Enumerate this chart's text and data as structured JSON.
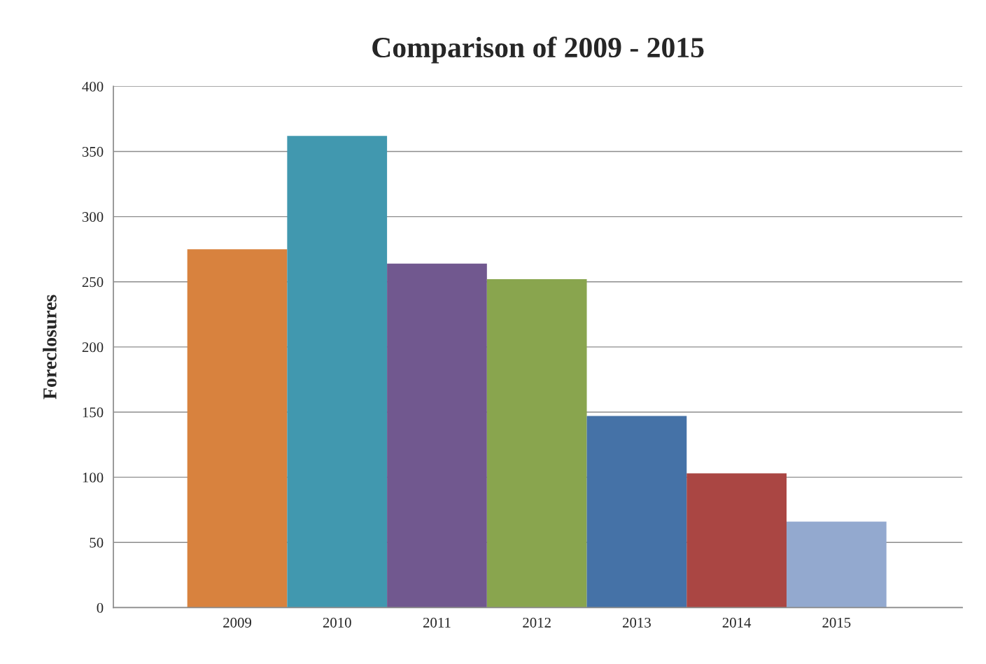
{
  "chart_data": {
    "type": "bar",
    "title": "Comparison of 2009 - 2015",
    "ylabel": "Foreclosures",
    "categories": [
      "2009",
      "2010",
      "2011",
      "2012",
      "2013",
      "2014",
      "2015"
    ],
    "values": [
      275,
      362,
      264,
      252,
      147,
      103,
      66
    ],
    "colors": [
      "#d8823e",
      "#4198af",
      "#71588f",
      "#89a54e",
      "#4572a7",
      "#aa4643",
      "#93a9cf"
    ],
    "ylim": [
      0,
      400
    ],
    "yticks": [
      0,
      50,
      100,
      150,
      200,
      250,
      300,
      350,
      400
    ],
    "grid": "y",
    "legend": false
  }
}
